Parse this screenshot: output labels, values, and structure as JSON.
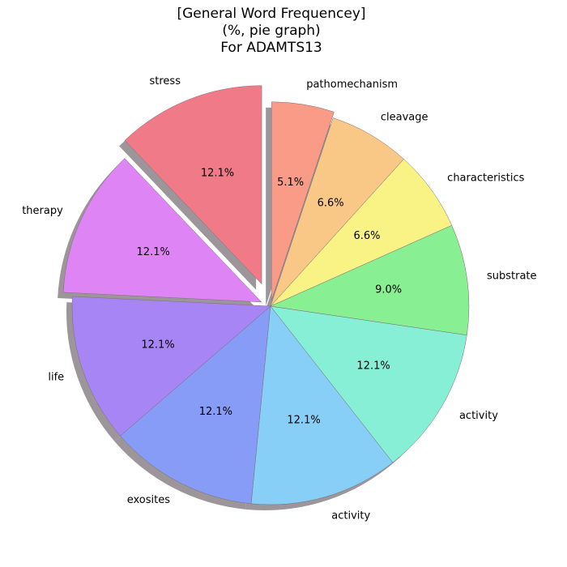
{
  "chart_data": {
    "type": "pie",
    "title": [
      "[General Word Frequencey]",
      "(%, pie graph)",
      "For ADAMTS13"
    ],
    "shadow": true,
    "start_angle_deg": 90,
    "direction": "counterclockwise",
    "slices": [
      {
        "label": "stress",
        "value": 12.1,
        "value_label": "12.1%",
        "color": "#f17a89",
        "explode": 0.12
      },
      {
        "label": "therapy",
        "value": 12.1,
        "value_label": "12.1%",
        "color": "#de84f5",
        "explode": 0.05
      },
      {
        "label": "life",
        "value": 12.1,
        "value_label": "12.1%",
        "color": "#a885f5",
        "explode": 0
      },
      {
        "label": "exosites",
        "value": 12.1,
        "value_label": "12.1%",
        "color": "#879cf6",
        "explode": 0
      },
      {
        "label": "activity",
        "value": 12.1,
        "value_label": "12.1%",
        "color": "#87cff7",
        "explode": 0
      },
      {
        "label": "activity",
        "value": 12.1,
        "value_label": "12.1%",
        "color": "#87efd6",
        "explode": 0
      },
      {
        "label": "substrate",
        "value": 9.0,
        "value_label": "9.0%",
        "color": "#88ef92",
        "explode": 0
      },
      {
        "label": "characteristics",
        "value": 6.6,
        "value_label": "6.6%",
        "color": "#f9f386",
        "explode": 0
      },
      {
        "label": "cleavage",
        "value": 6.6,
        "value_label": "6.6%",
        "color": "#f9c886",
        "explode": 0
      },
      {
        "label": "pathomechanism",
        "value": 5.1,
        "value_label": "5.1%",
        "color": "#f99b86",
        "explode": 0.03
      }
    ]
  }
}
